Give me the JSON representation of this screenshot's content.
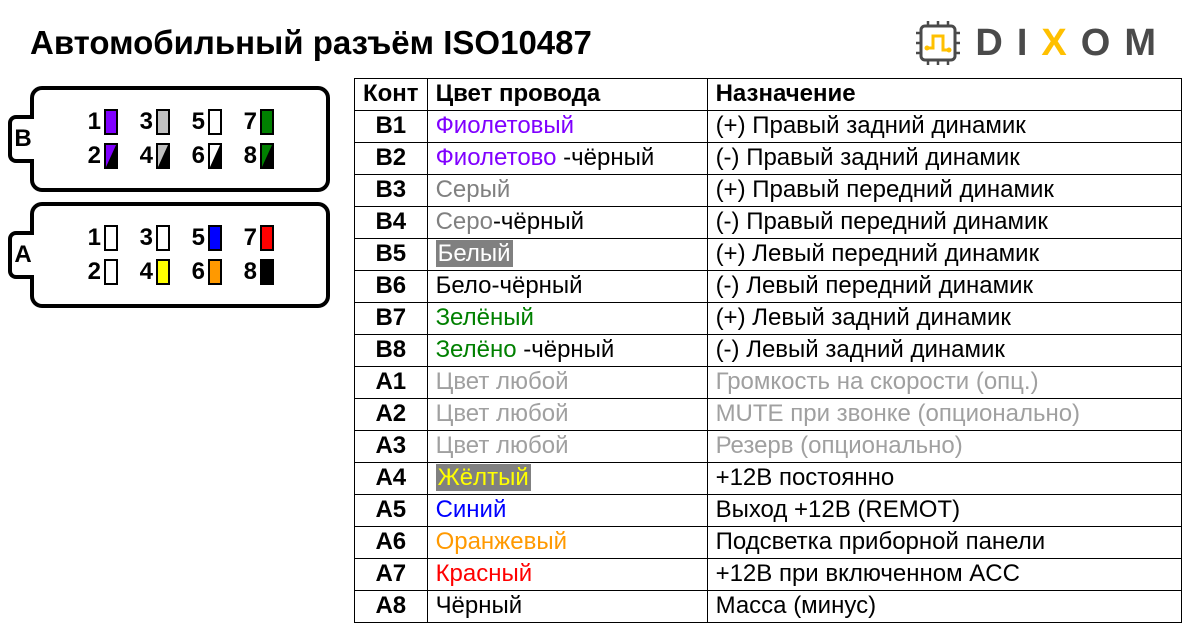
{
  "title": "Автомобильный разъём ISO10487",
  "logo": {
    "text_pre": "DI",
    "text_accent": "X",
    "text_post": "OM"
  },
  "colors": {
    "violet": "#8000ff",
    "gray": "#808080",
    "lightgray": "#b0b0b0",
    "white": "#ffffff",
    "green": "#008000",
    "yellow": "#ffff00",
    "blue": "#0000ff",
    "orange": "#ff9900",
    "red": "#ff0000",
    "black": "#000000",
    "optional_text": "#a0a0a0",
    "highlight_bg": "#808080"
  },
  "connector": {
    "blocks": [
      {
        "label": "B",
        "rows": [
          [
            {
              "n": "1",
              "fill": "#8000ff",
              "stripe": null
            },
            {
              "n": "3",
              "fill": "#c0c0c0",
              "stripe": null
            },
            {
              "n": "5",
              "fill": "#ffffff",
              "stripe": null
            },
            {
              "n": "7",
              "fill": "#008000",
              "stripe": null
            }
          ],
          [
            {
              "n": "2",
              "fill": "#8000ff",
              "stripe": "#000000"
            },
            {
              "n": "4",
              "fill": "#c0c0c0",
              "stripe": "#000000"
            },
            {
              "n": "6",
              "fill": "#ffffff",
              "stripe": "#000000"
            },
            {
              "n": "8",
              "fill": "#008000",
              "stripe": "#000000"
            }
          ]
        ]
      },
      {
        "label": "A",
        "rows": [
          [
            {
              "n": "1",
              "fill": "#ffffff",
              "stripe": null
            },
            {
              "n": "3",
              "fill": "#ffffff",
              "stripe": null
            },
            {
              "n": "5",
              "fill": "#0000ff",
              "stripe": null
            },
            {
              "n": "7",
              "fill": "#ff0000",
              "stripe": null
            }
          ],
          [
            {
              "n": "2",
              "fill": "#ffffff",
              "stripe": null
            },
            {
              "n": "4",
              "fill": "#ffff00",
              "stripe": null
            },
            {
              "n": "6",
              "fill": "#ff9900",
              "stripe": null
            },
            {
              "n": "8",
              "fill": "#000000",
              "stripe": null
            }
          ]
        ]
      }
    ]
  },
  "table": {
    "headers": [
      "Конт",
      "Цвет провода",
      "Назначение"
    ],
    "rows": [
      {
        "pin": "B1",
        "color_segments": [
          {
            "text": "Фиолетовый",
            "color": "#8000ff"
          }
        ],
        "purpose": "(+) Правый задний динамик"
      },
      {
        "pin": "B2",
        "color_segments": [
          {
            "text": "Фиолетово",
            "color": "#8000ff"
          },
          {
            "text": " -чёрный",
            "color": "#000000"
          }
        ],
        "purpose": "(-)  Правый задний динамик"
      },
      {
        "pin": "B3",
        "color_segments": [
          {
            "text": "Серый",
            "color": "#808080"
          }
        ],
        "purpose": "(+) Правый передний динамик"
      },
      {
        "pin": "B4",
        "color_segments": [
          {
            "text": "Серо",
            "color": "#808080"
          },
          {
            "text": "-чёрный",
            "color": "#000000"
          }
        ],
        "purpose": "(-)  Правый передний динамик"
      },
      {
        "pin": "B5",
        "color_segments": [
          {
            "text": "Белый",
            "color": "#ffffff",
            "bg": "#808080"
          }
        ],
        "purpose": "(+) Левый передний динамик"
      },
      {
        "pin": "B6",
        "color_segments": [
          {
            "text": "Бело",
            "color": "#000000"
          },
          {
            "text": "-чёрный",
            "color": "#000000"
          }
        ],
        "purpose": "(-)  Левый передний динамик"
      },
      {
        "pin": "B7",
        "color_segments": [
          {
            "text": "Зелёный",
            "color": "#008000"
          }
        ],
        "purpose": "(+) Левый задний динамик"
      },
      {
        "pin": "B8",
        "color_segments": [
          {
            "text": "Зелёно",
            "color": "#008000"
          },
          {
            "text": " -чёрный",
            "color": "#000000"
          }
        ],
        "purpose": "(-)  Левый задний динамик"
      },
      {
        "pin": "A1",
        "color_segments": [
          {
            "text": "Цвет любой",
            "color": "#a0a0a0"
          }
        ],
        "purpose": "Громкость на скорости (опц.)",
        "purpose_color": "#a0a0a0"
      },
      {
        "pin": "A2",
        "color_segments": [
          {
            "text": "Цвет любой",
            "color": "#a0a0a0"
          }
        ],
        "purpose": "MUTE при звонке (опционально)",
        "purpose_color": "#a0a0a0"
      },
      {
        "pin": "A3",
        "color_segments": [
          {
            "text": "Цвет любой",
            "color": "#a0a0a0"
          }
        ],
        "purpose": "Резерв (опционально)",
        "purpose_color": "#a0a0a0"
      },
      {
        "pin": "A4",
        "color_segments": [
          {
            "text": "Жёлтый",
            "color": "#ffff00",
            "bg": "#808080"
          }
        ],
        "purpose": "+12В постоянно"
      },
      {
        "pin": "A5",
        "color_segments": [
          {
            "text": "Синий",
            "color": "#0000ff"
          }
        ],
        "purpose": "Выход +12В (REMOT)"
      },
      {
        "pin": "A6",
        "color_segments": [
          {
            "text": "Оранжевый",
            "color": "#ff9900"
          }
        ],
        "purpose": "Подсветка приборной панели"
      },
      {
        "pin": "A7",
        "color_segments": [
          {
            "text": "Красный",
            "color": "#ff0000"
          }
        ],
        "purpose": "+12В при включенном ACC"
      },
      {
        "pin": "A8",
        "color_segments": [
          {
            "text": "Чёрный",
            "color": "#000000"
          }
        ],
        "purpose": "Масса (минус)"
      }
    ]
  }
}
